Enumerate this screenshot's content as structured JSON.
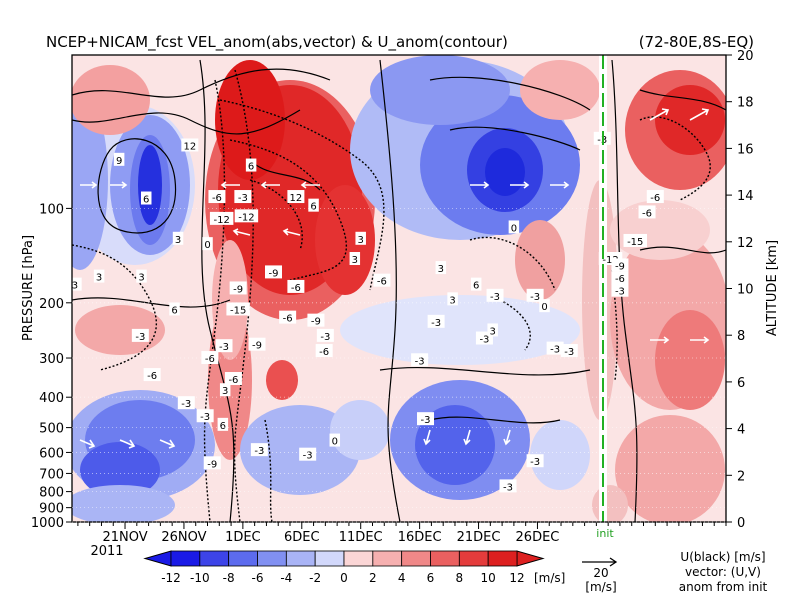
{
  "chart_data": {
    "type": "heatmap",
    "title": "NCEP+NICAM_fcst VEL_anom(abs,vector) & U_anom(contour)",
    "region": "(72-80E,8S-EQ)",
    "ylabel": "PRESSURE [hPa]",
    "ylabel_right": "ALTITUDE [km]",
    "x_ticks": [
      "21NOV",
      "26NOV",
      "1DEC",
      "6DEC",
      "11DEC",
      "16DEC",
      "21DEC",
      "26DEC"
    ],
    "x_year": "2011",
    "y_ticks_pressure": [
      "100",
      "200",
      "300",
      "400",
      "500",
      "600",
      "700",
      "800",
      "900",
      "1000"
    ],
    "y_ticks_altitude": [
      "0",
      "2",
      "4",
      "6",
      "8",
      "10",
      "12",
      "14",
      "16",
      "18",
      "20"
    ],
    "init_label": "init",
    "colorbar": {
      "levels": [
        -12,
        -10,
        -8,
        -6,
        -4,
        -2,
        0,
        2,
        4,
        6,
        8,
        10,
        12
      ],
      "labels": [
        "-12",
        "-10",
        "-8",
        "-6",
        "-4",
        "-2",
        "0",
        "2",
        "4",
        "6",
        "8",
        "10",
        "12"
      ],
      "unit": "[m/s]",
      "colors": [
        "#1a1ae6",
        "#3d44e8",
        "#5c6bee",
        "#8190f2",
        "#a9b4f6",
        "#d2d8fb",
        "#fbd6d6",
        "#f6b0b0",
        "#f08888",
        "#ea6060",
        "#e43c3c",
        "#dd2020"
      ]
    },
    "vector_ref": {
      "value": "20",
      "unit": "[m/s]"
    },
    "legend_lines": [
      "U(black) [m/s]",
      "vector: (U,V)",
      "anom from init"
    ],
    "contour_labels": [
      {
        "v": "9",
        "d": 20.5,
        "p": 70
      },
      {
        "v": "12",
        "d": 26.5,
        "p": 63
      },
      {
        "v": "-6",
        "d": 28.8,
        "p": 92
      },
      {
        "v": "-3",
        "d": 31.0,
        "p": 92
      },
      {
        "v": "-12",
        "d": 29.2,
        "p": 108
      },
      {
        "v": "-12",
        "d": 31.3,
        "p": 106
      },
      {
        "v": "6",
        "d": 31.7,
        "p": 73
      },
      {
        "v": "6",
        "d": 22.8,
        "p": 93
      },
      {
        "v": "12",
        "d": 35.5,
        "p": 92
      },
      {
        "v": "6",
        "d": 37.0,
        "p": 98
      },
      {
        "v": "3",
        "d": 25.5,
        "p": 125
      },
      {
        "v": "0",
        "d": 28.0,
        "p": 130
      },
      {
        "v": "-9",
        "d": 33.6,
        "p": 160
      },
      {
        "v": "-9",
        "d": 30.6,
        "p": 180
      },
      {
        "v": "-6",
        "d": 35.5,
        "p": 178
      },
      {
        "v": "-15",
        "d": 30.6,
        "p": 210
      },
      {
        "v": "-6",
        "d": 34.8,
        "p": 223
      },
      {
        "v": "-9",
        "d": 37.2,
        "p": 228
      },
      {
        "v": "-3",
        "d": 38.0,
        "p": 255
      },
      {
        "v": "-3",
        "d": 29.4,
        "p": 275
      },
      {
        "v": "-9",
        "d": 32.2,
        "p": 272
      },
      {
        "v": "-6",
        "d": 37.9,
        "p": 285
      },
      {
        "v": "-3",
        "d": 22.3,
        "p": 255
      },
      {
        "v": "-6",
        "d": 28.2,
        "p": 300
      },
      {
        "v": "-6",
        "d": 23.3,
        "p": 340
      },
      {
        "v": "-6",
        "d": 30.2,
        "p": 350
      },
      {
        "v": "3",
        "d": 18.8,
        "p": 165
      },
      {
        "v": "3",
        "d": 22.4,
        "p": 165
      },
      {
        "v": "-3",
        "d": 16.6,
        "p": 175
      },
      {
        "v": "6",
        "d": 25.2,
        "p": 210
      },
      {
        "v": "3",
        "d": 41.0,
        "p": 125
      },
      {
        "v": "3",
        "d": 40.5,
        "p": 145
      },
      {
        "v": "-6",
        "d": 42.8,
        "p": 170
      },
      {
        "v": "3",
        "d": 47.8,
        "p": 155
      },
      {
        "v": "6",
        "d": 50.8,
        "p": 175
      },
      {
        "v": "-3",
        "d": 47.4,
        "p": 230
      },
      {
        "v": "3",
        "d": 48.8,
        "p": 195
      },
      {
        "v": "-3",
        "d": 52.4,
        "p": 190
      },
      {
        "v": "-3",
        "d": 51.5,
        "p": 260
      },
      {
        "v": "-3",
        "d": 46.0,
        "p": 305
      },
      {
        "v": "3",
        "d": 52.2,
        "p": 245
      },
      {
        "v": "-3",
        "d": 55.8,
        "p": 190
      },
      {
        "v": "-3",
        "d": 57.5,
        "p": 280
      },
      {
        "v": "0",
        "d": 56.6,
        "p": 205
      },
      {
        "v": "6",
        "d": 29.3,
        "p": 490
      },
      {
        "v": "3",
        "d": 29.5,
        "p": 380
      },
      {
        "v": "-3",
        "d": 26.2,
        "p": 418
      },
      {
        "v": "-3",
        "d": 27.8,
        "p": 460
      },
      {
        "v": "-3",
        "d": 32.4,
        "p": 590
      },
      {
        "v": "-3",
        "d": 36.5,
        "p": 610
      },
      {
        "v": "0",
        "d": 38.8,
        "p": 550
      },
      {
        "v": "-3",
        "d": 46.5,
        "p": 470
      },
      {
        "v": "-3",
        "d": 55.8,
        "p": 640
      },
      {
        "v": "-3",
        "d": 53.5,
        "p": 770
      },
      {
        "v": "-9",
        "d": 28.4,
        "p": 650
      },
      {
        "v": "-3",
        "d": 61.5,
        "p": 60
      },
      {
        "v": "-6",
        "d": 65.3,
        "p": 103
      },
      {
        "v": "-15",
        "d": 64.3,
        "p": 127
      },
      {
        "v": "-12",
        "d": 62.2,
        "p": 145
      },
      {
        "v": "-9",
        "d": 63.0,
        "p": 152
      },
      {
        "v": "-6",
        "d": 63.0,
        "p": 167
      },
      {
        "v": "-3",
        "d": 63.0,
        "p": 183
      },
      {
        "v": "-6",
        "d": 66.0,
        "p": 92
      },
      {
        "v": "-3",
        "d": 58.7,
        "p": 285
      },
      {
        "v": "0",
        "d": 54.0,
        "p": 115
      }
    ]
  }
}
